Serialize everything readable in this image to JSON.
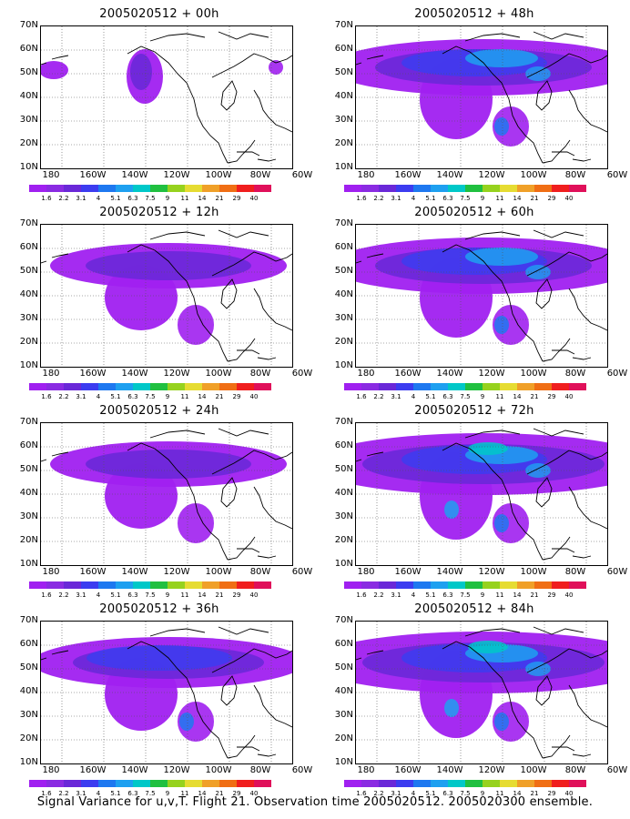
{
  "panels": [
    {
      "title": "2005020512 + 00h",
      "intensity": 0
    },
    {
      "title": "2005020512 + 48h",
      "intensity": 3
    },
    {
      "title": "2005020512 + 12h",
      "intensity": 1
    },
    {
      "title": "2005020512 + 60h",
      "intensity": 3
    },
    {
      "title": "2005020512 + 24h",
      "intensity": 1
    },
    {
      "title": "2005020512 + 72h",
      "intensity": 4
    },
    {
      "title": "2005020512 + 36h",
      "intensity": 2
    },
    {
      "title": "2005020512 + 84h",
      "intensity": 4
    }
  ],
  "y_ticks": [
    "70N",
    "60N",
    "50N",
    "40N",
    "30N",
    "20N",
    "10N"
  ],
  "x_ticks": [
    "180",
    "160W",
    "140W",
    "120W",
    "100W",
    "80W",
    "60W"
  ],
  "colorbar": {
    "labels": [
      "1.6",
      "2.2",
      "3.1",
      "4",
      "5.1",
      "6.3",
      "7.5",
      "9",
      "11",
      "14",
      "21",
      "29",
      "40"
    ],
    "colors": [
      "#a020f0",
      "#8a2be2",
      "#6a28d8",
      "#3c3cf0",
      "#1e78f0",
      "#1ea0f0",
      "#00c8c8",
      "#20c040",
      "#96d21e",
      "#e6dc32",
      "#f0a028",
      "#f06e14",
      "#f01e1e",
      "#e0105a"
    ]
  },
  "footer": "Signal Variance for u,v,T. Flight 21. Observation time 2005020512. 2005020300 ensemble."
}
